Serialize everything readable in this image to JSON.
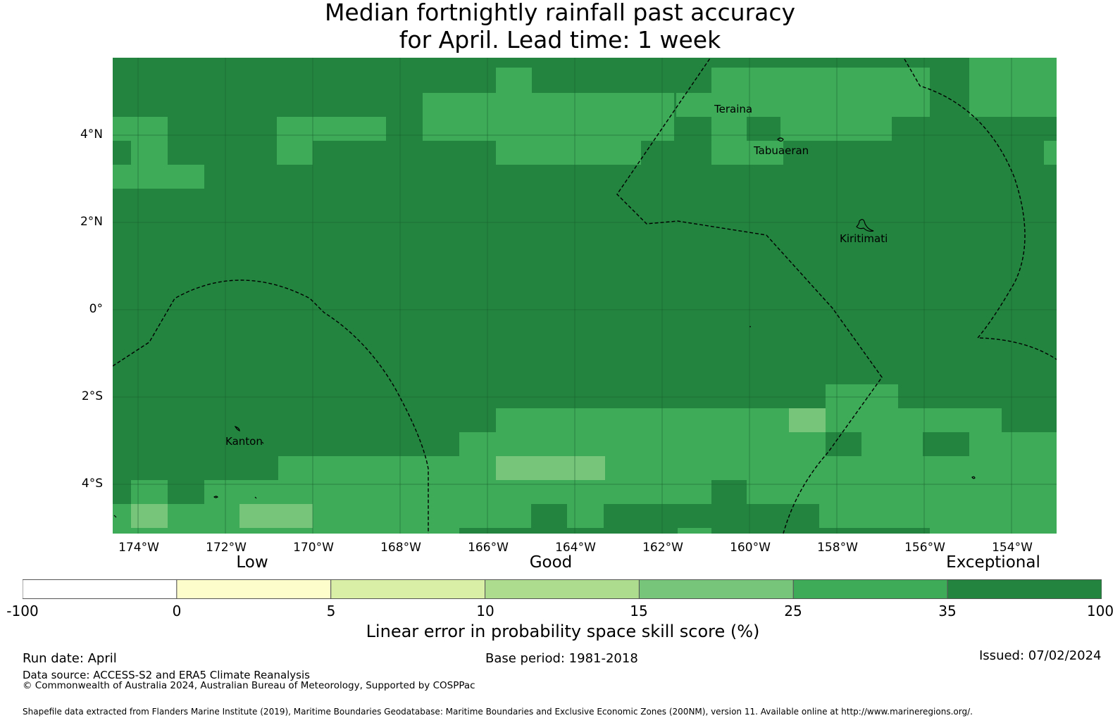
{
  "title": {
    "line1": "Median fortnightly rainfall past accuracy",
    "line2": "for April. Lead time: 1 week"
  },
  "map": {
    "lon_ticks": [
      "174°W",
      "172°W",
      "170°W",
      "168°W",
      "166°W",
      "164°W",
      "162°W",
      "160°W",
      "158°W",
      "156°W",
      "154°W"
    ],
    "lat_ticks": [
      "4°N",
      "2°N",
      "0°",
      "2°S",
      "4°S"
    ],
    "places": [
      "Teraina",
      "Tabuaeran",
      "Kiritimati",
      "Kanton"
    ],
    "colors": {
      "exceptional_dark": "#22843f",
      "class_25_35": "#3dab58",
      "class_15_25": "#77c57b",
      "class_10_15": "#aedc8e",
      "class_5_10": "#d9efa5",
      "class_0_5": "#fdfdcc",
      "class_neg": "#ffffff"
    }
  },
  "legend": {
    "qualitative": [
      "Low",
      "Good",
      "Exceptional"
    ],
    "ticks": [
      "-100",
      "0",
      "5",
      "10",
      "15",
      "25",
      "35",
      "100"
    ],
    "colors": [
      "#ffffff",
      "#fdfdcc",
      "#d9efa5",
      "#aedc8e",
      "#77c57b",
      "#3dab58",
      "#22843f"
    ],
    "label": "Linear error in probability space skill score (%)"
  },
  "footer": {
    "run_date": "Run date: April",
    "base_period": "Base period: 1981-2018",
    "issued": "Issued: 07/02/2024",
    "data_source": "Data source: ACCESS-S2 and ERA5 Climate Reanalysis",
    "copyright": "© Commonwealth of Australia 2024, Australian Bureau of Meteorology, Supported by COSPPac",
    "shapefile": "Shapefile data extracted from Flanders Marine Institute (2019), Maritime Boundaries Geodatabase: Maritime Boundaries and Exclusive Economic Zones (200NM), version 11. Available online at http://www.marineregions.org/."
  }
}
